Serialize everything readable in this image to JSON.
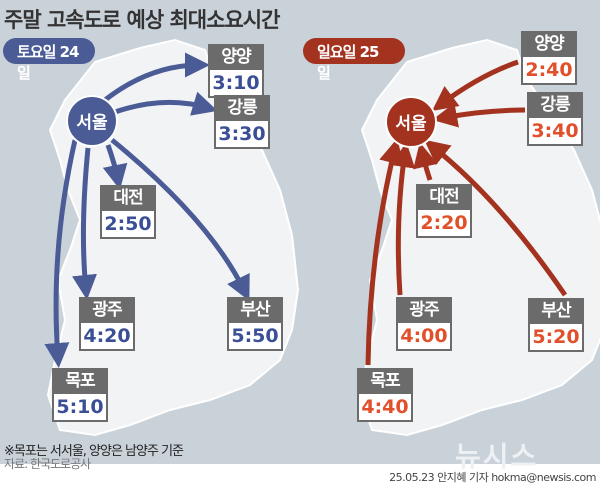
{
  "title": "주말 고속도로 예상 최대소요시간",
  "saturday": {
    "label": "토요일 24일",
    "hub": "서울",
    "color": "#4a5b96",
    "cities": [
      {
        "name": "양양",
        "time": "3:10"
      },
      {
        "name": "강릉",
        "time": "3:30"
      },
      {
        "name": "대전",
        "time": "2:50"
      },
      {
        "name": "광주",
        "time": "4:20"
      },
      {
        "name": "부산",
        "time": "5:50"
      },
      {
        "name": "목포",
        "time": "5:10"
      }
    ]
  },
  "sunday": {
    "label": "일요일 25일",
    "hub": "서울",
    "color": "#a3321f",
    "cities": [
      {
        "name": "양양",
        "time": "2:40"
      },
      {
        "name": "강릉",
        "time": "3:40"
      },
      {
        "name": "대전",
        "time": "2:20"
      },
      {
        "name": "광주",
        "time": "4:00"
      },
      {
        "name": "부산",
        "time": "5:20"
      },
      {
        "name": "목포",
        "time": "4:40"
      }
    ]
  },
  "note": "※목포는 서서울, 양양은 남양주 기준",
  "source": "자료: 한국도로공사",
  "logo": "뉴시스",
  "credit": "25.05.23 안지혜 기자 hokma@newsis.com"
}
